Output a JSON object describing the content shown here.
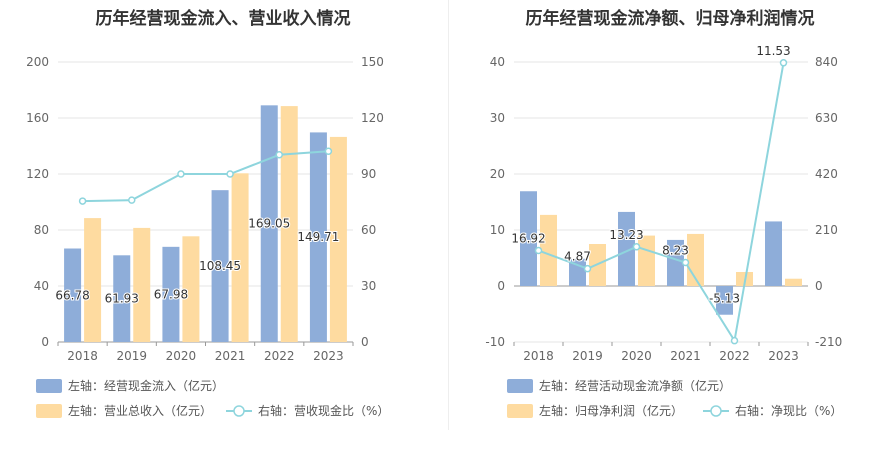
{
  "chart_data": [
    {
      "type": "bar",
      "title": "历年经营现金流入、营业收入情况",
      "categories": [
        "2018",
        "2019",
        "2020",
        "2021",
        "2022",
        "2023"
      ],
      "left_axis": {
        "min": 0,
        "max": 200,
        "ticks": [
          "0",
          "40",
          "80",
          "120",
          "160",
          "200"
        ]
      },
      "right_axis": {
        "min": 0,
        "max": 150,
        "ticks": [
          "0",
          "30",
          "60",
          "90",
          "120",
          "150"
        ]
      },
      "series": [
        {
          "name": "左轴：经营现金流入（亿元）",
          "kind": "bar",
          "axis": "left",
          "color": "#8eadd9",
          "values": [
            66.78,
            61.93,
            67.98,
            108.45,
            169.05,
            149.71
          ],
          "labels": [
            "66.78",
            "61.93",
            "67.98",
            "108.45",
            "169.05",
            "149.71"
          ]
        },
        {
          "name": "左轴：营业总收入（亿元）",
          "kind": "bar",
          "axis": "left",
          "color": "#fedba0",
          "values": [
            88.5,
            81.5,
            75.5,
            120.5,
            168.5,
            146.5
          ]
        },
        {
          "name": "右轴：营收现金比（%）",
          "kind": "line",
          "axis": "right",
          "color": "#8ed5dd",
          "values": [
            75.5,
            76.0,
            90.0,
            90.0,
            100.3,
            102.2
          ]
        }
      ]
    },
    {
      "type": "bar",
      "title": "历年经营现金流净额、归母净利润情况",
      "categories": [
        "2018",
        "2019",
        "2020",
        "2021",
        "2022",
        "2023"
      ],
      "left_axis": {
        "min": -10,
        "max": 40,
        "ticks": [
          "-10",
          "0",
          "10",
          "20",
          "30",
          "40"
        ]
      },
      "right_axis": {
        "min": -210,
        "max": 840,
        "ticks": [
          "-210",
          "0",
          "210",
          "420",
          "630",
          "840"
        ]
      },
      "series": [
        {
          "name": "左轴：经营活动现金流净额（亿元）",
          "kind": "bar",
          "axis": "left",
          "color": "#8eadd9",
          "values": [
            16.92,
            4.87,
            13.23,
            8.23,
            -5.13,
            11.53
          ],
          "labels": [
            "16.92",
            "4.87",
            "13.23",
            "8.23",
            "-5.13",
            "11.53"
          ]
        },
        {
          "name": "左轴：归母净利润（亿元）",
          "kind": "bar",
          "axis": "left",
          "color": "#fedba0",
          "values": [
            12.7,
            7.5,
            9.0,
            9.3,
            2.5,
            1.3
          ]
        },
        {
          "name": "右轴：净现比（%）",
          "kind": "line",
          "axis": "right",
          "color": "#8ed5dd",
          "values": [
            133,
            65,
            147,
            88,
            -205,
            837
          ]
        }
      ]
    }
  ]
}
